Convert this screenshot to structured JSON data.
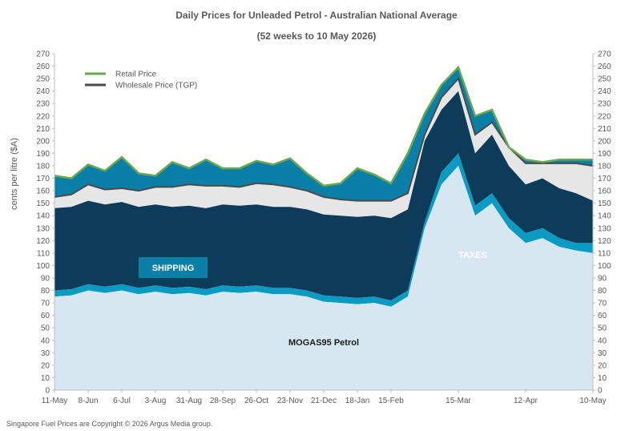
{
  "chart_data": {
    "type": "area",
    "title": "Daily Prices for Unleaded Petrol - Australian National Average",
    "subtitle": "(52 weeks to 10 May 2026)",
    "ylabel": "cents per litre ($A)",
    "ylim": [
      0,
      270
    ],
    "yticks": [
      0,
      10,
      20,
      30,
      40,
      50,
      60,
      70,
      80,
      90,
      100,
      110,
      120,
      130,
      140,
      150,
      160,
      170,
      180,
      190,
      200,
      210,
      220,
      230,
      240,
      250,
      260,
      270
    ],
    "x": [
      "11-May",
      "25-May",
      "8-Jun",
      "22-Jun",
      "6-Jul",
      "20-Jul",
      "3-Aug",
      "17-Aug",
      "31-Aug",
      "14-Sep",
      "28-Sep",
      "12-Oct",
      "26-Oct",
      "9-Nov",
      "23-Nov",
      "7-Dec",
      "21-Dec",
      "4-Jan",
      "18-Jan",
      "1-Feb",
      "15-Feb",
      "22-Feb",
      "1-Mar",
      "8-Mar",
      "15-Mar",
      "22-Mar",
      "29-Mar",
      "5-Apr",
      "12-Apr",
      "19-Apr",
      "26-Apr",
      "3-May",
      "10-May"
    ],
    "xtick_labels": [
      "11-May",
      "8-Jun",
      "6-Jul",
      "3-Aug",
      "31-Aug",
      "28-Sep",
      "26-Oct",
      "23-Nov",
      "21-Dec",
      "18-Jan",
      "15-Feb",
      "15-Mar",
      "12-Apr",
      "10-May"
    ],
    "series": [
      {
        "name": "MOGAS95 Petrol",
        "values": [
          75,
          76,
          80,
          78,
          80,
          77,
          79,
          77,
          78,
          76,
          79,
          78,
          79,
          77,
          77,
          75,
          71,
          70,
          69,
          70,
          67,
          75,
          130,
          165,
          180,
          140,
          150,
          130,
          118,
          122,
          115,
          112,
          110
        ]
      },
      {
        "name": "SHIPPING",
        "values": [
          80,
          81,
          85,
          83,
          85,
          82,
          84,
          82,
          83,
          81,
          84,
          83,
          84,
          82,
          82,
          80,
          76,
          75,
          74,
          75,
          72,
          80,
          135,
          175,
          190,
          148,
          158,
          138,
          126,
          130,
          122,
          118,
          118
        ]
      },
      {
        "name": "TAXES",
        "values": [
          146,
          147,
          152,
          149,
          151,
          147,
          149,
          147,
          148,
          146,
          149,
          148,
          149,
          147,
          147,
          145,
          141,
          140,
          139,
          140,
          138,
          145,
          200,
          225,
          240,
          190,
          205,
          180,
          165,
          170,
          162,
          158,
          152
        ]
      },
      {
        "name": "Wholesale Price (TGP)",
        "values": [
          155,
          157,
          165,
          161,
          162,
          160,
          163,
          163,
          165,
          164,
          164,
          163,
          166,
          165,
          163,
          160,
          155,
          153,
          152,
          152,
          152,
          158,
          205,
          235,
          250,
          205,
          215,
          195,
          182,
          182,
          182,
          182,
          180
        ]
      },
      {
        "name": "Retail Price",
        "values": [
          172,
          170,
          181,
          176,
          187,
          174,
          172,
          183,
          178,
          185,
          178,
          178,
          184,
          181,
          186,
          174,
          164,
          166,
          178,
          173,
          166,
          190,
          222,
          245,
          259,
          220,
          225,
          195,
          185,
          183,
          185,
          185,
          185
        ]
      }
    ],
    "area_labels": {
      "mogas": "MOGAS95 Petrol",
      "shipping": "SHIPPING",
      "taxes": "TAXES"
    },
    "legend": {
      "placement": "top-left",
      "entries": [
        "Retail Price",
        "Wholesale Price (TGP)"
      ]
    },
    "colors": {
      "mogas": "#d6e7f1",
      "shipping": "#0a9bc2",
      "taxes": "#0d3b5a",
      "wholesale_band": "#e6e6e6",
      "retail_band": "#0a7fa7",
      "retail_line": "#6aa84f",
      "wholesale_line": "#4a4a4a",
      "shipping_box": "#0a7fa7"
    },
    "grid": false
  },
  "footer": "Singapore Fuel Prices are Copyright © 2026 Argus Media group."
}
